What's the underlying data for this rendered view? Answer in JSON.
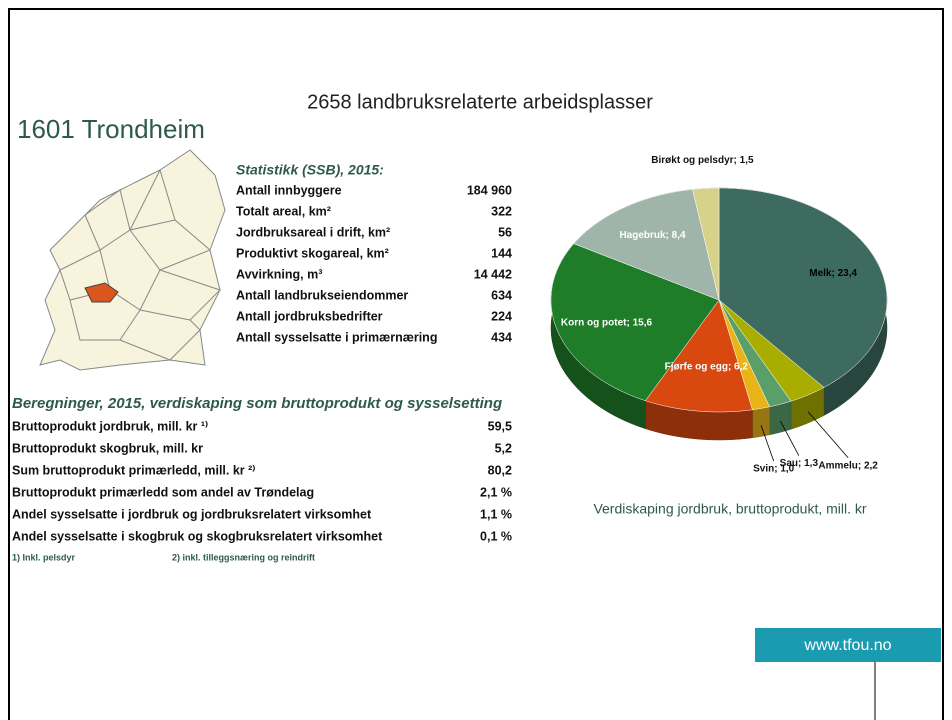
{
  "headline": "2658 landbruksrelaterte arbeidsplasser",
  "municipality": "1601 Trondheim",
  "stats": {
    "title": "Statistikk (SSB), 2015:",
    "rows": [
      [
        "Antall innbyggere",
        "184 960"
      ],
      [
        "Totalt areal, km²",
        "322"
      ],
      [
        "Jordbruksareal i drift, km²",
        "56"
      ],
      [
        "Produktivt skogareal, km²",
        "144"
      ],
      [
        "Avvirkning, m³",
        "14 442"
      ],
      [
        "Antall landbrukseiendommer",
        "634"
      ],
      [
        "Antall jordbruksbedrifter",
        "224"
      ],
      [
        "Antall sysselsatte i primærnæring",
        "434"
      ]
    ]
  },
  "calc": {
    "title": "Beregninger, 2015, verdiskaping som bruttoprodukt og sysselsetting",
    "rows": [
      [
        "Bruttoprodukt jordbruk, mill. kr ¹⁾",
        "59,5"
      ],
      [
        "Bruttoprodukt skogbruk, mill. kr",
        "5,2"
      ],
      [
        "Sum bruttoprodukt primærledd, mill. kr ²⁾",
        "80,2"
      ],
      [
        "Bruttoprodukt primærledd som andel av Trøndelag",
        "2,1 %"
      ],
      [
        "Andel sysselsatte i jordbruk og jordbruksrelatert virksomhet",
        "1,1 %"
      ],
      [
        "Andel sysselsatte i skogbruk og skogbruksrelatert virksomhet",
        "0,1 %"
      ]
    ]
  },
  "footnotes": [
    "1) Inkl. pelsdyr",
    "2) inkl. tilleggsnæring og reindrift"
  ],
  "url": "www.tfou.no",
  "chart_data": {
    "type": "pie",
    "title": "Verdiskaping jordbruk, bruttoprodukt, mill. kr",
    "values": [
      23.4,
      2.2,
      1.3,
      1.0,
      6.2,
      15.6,
      8.4,
      1.5
    ],
    "value_labels": [
      "Melk; 23,4",
      "Ammelu; 2,2",
      "Sau; 1,3",
      "Svin; 1,0",
      "Fjørfe og egg; 6,2",
      "Korn og potet; 15,6",
      "Hagebruk; 8,4",
      "Birøkt og pelsdyr; 1,5"
    ],
    "colors": [
      "#3d6b5f",
      "#a9ad00",
      "#5a9e6a",
      "#e8b418",
      "#d9480f",
      "#1f7d2a",
      "#a0b5aa",
      "#d6d28a"
    ]
  }
}
